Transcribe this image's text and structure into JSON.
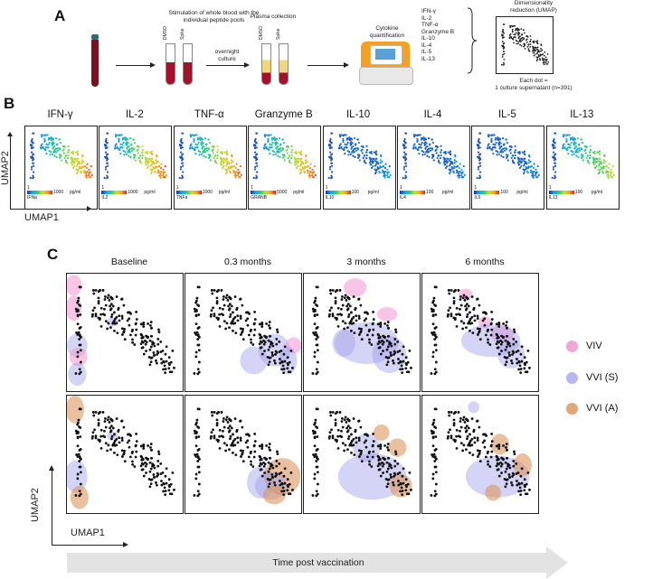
{
  "panel_a": {
    "label": "A",
    "stim_text_1": "Stimulation of whole blood with the",
    "stim_text_2": "individual peptide pools",
    "tube_label_dmso": "DMSO",
    "tube_label_spike": "Spike",
    "overnight_1": "overnight",
    "overnight_2": "culture",
    "plasma_title": "Plasma collection",
    "cytokine_1": "Cytokine",
    "cytokine_2": "quantification",
    "cytokine_list": [
      "IFN-γ",
      "IL-2",
      "TNF-α",
      "Granzyme B",
      "IL-10",
      "IL-4",
      "IL-5",
      "IL-13"
    ],
    "dimred_1": "Dimensionality",
    "dimred_2": "reduction (UMAP)",
    "each_dot_1": "Each dot =",
    "each_dot_2": "1 culture supernatant (n=391)"
  },
  "panel_b": {
    "label": "B",
    "axis_y": "UMAP2",
    "axis_x": "UMAP1",
    "unit": "pg/ml",
    "plots": [
      {
        "title": "IFN-γ",
        "bar_name": "IFNa",
        "min": "1",
        "max": "1000",
        "mode": "gradient"
      },
      {
        "title": "IL-2",
        "bar_name": "IL2",
        "min": "1",
        "max": "1000",
        "mode": "gradient"
      },
      {
        "title": "TNF-α",
        "bar_name": "TNFa",
        "min": "1",
        "max": "1000",
        "mode": "gradient"
      },
      {
        "title": "Granzyme B",
        "bar_name": "GRANB",
        "min": "1",
        "max": "5000",
        "mode": "gradient"
      },
      {
        "title": "IL-10",
        "bar_name": "IL10",
        "min": "1",
        "max": "100",
        "mode": "low"
      },
      {
        "title": "IL-4",
        "bar_name": "IL4",
        "min": "1",
        "max": "100",
        "mode": "low"
      },
      {
        "title": "IL-5",
        "bar_name": "IL5",
        "min": "1",
        "max": "100",
        "mode": "low"
      },
      {
        "title": "IL-13",
        "bar_name": "IL13",
        "min": "1",
        "max": "100",
        "mode": "mixed"
      }
    ]
  },
  "panel_c": {
    "label": "C",
    "columns": [
      "Baseline",
      "0.3 months",
      "3 months",
      "6 months"
    ],
    "axis_y": "UMAP2",
    "axis_x": "UMAP1",
    "time_arrow": "Time post vaccination",
    "legend": [
      {
        "label": "VIV",
        "color": "#f2a6d6"
      },
      {
        "label": "VVI (S)",
        "color": "#b8b8f0"
      },
      {
        "label": "VVI (A)",
        "color": "#e0a878"
      }
    ]
  }
}
